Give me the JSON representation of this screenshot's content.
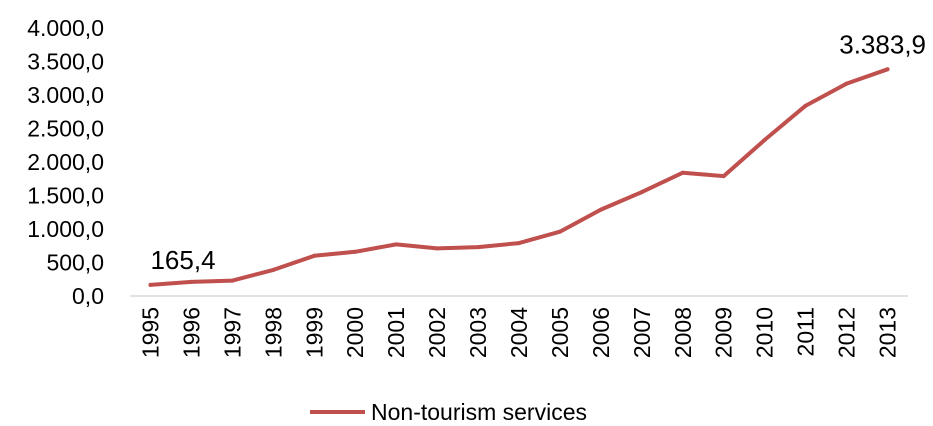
{
  "chart_data": {
    "type": "line",
    "title": "",
    "xlabel": "",
    "ylabel": "",
    "categories": [
      "1995",
      "1996",
      "1997",
      "1998",
      "1999",
      "2000",
      "2001",
      "2002",
      "2003",
      "2004",
      "2005",
      "2006",
      "2007",
      "2008",
      "2009",
      "2010",
      "2011",
      "2012",
      "2013"
    ],
    "series": [
      {
        "name": "Non-tourism services",
        "color": "#C0504D",
        "values": [
          165.4,
          210,
          230,
          390,
          600,
          660,
          770,
          710,
          730,
          790,
          960,
          1290,
          1550,
          1840,
          1790,
          2330,
          2840,
          3170,
          3383.9
        ]
      }
    ],
    "ylim": [
      0,
      4000
    ],
    "ytick_labels": [
      "0,0",
      "500,0",
      "1.000,0",
      "1.500,0",
      "2.000,0",
      "2.500,0",
      "3.000,0",
      "3.500,0",
      "4.000,0"
    ],
    "data_labels": [
      {
        "index": 0,
        "text": "165,4"
      },
      {
        "index": 18,
        "text": "3.383,9"
      }
    ],
    "grid": false,
    "legend": {
      "position": "bottom",
      "entries": [
        "Non-tourism services"
      ]
    }
  }
}
